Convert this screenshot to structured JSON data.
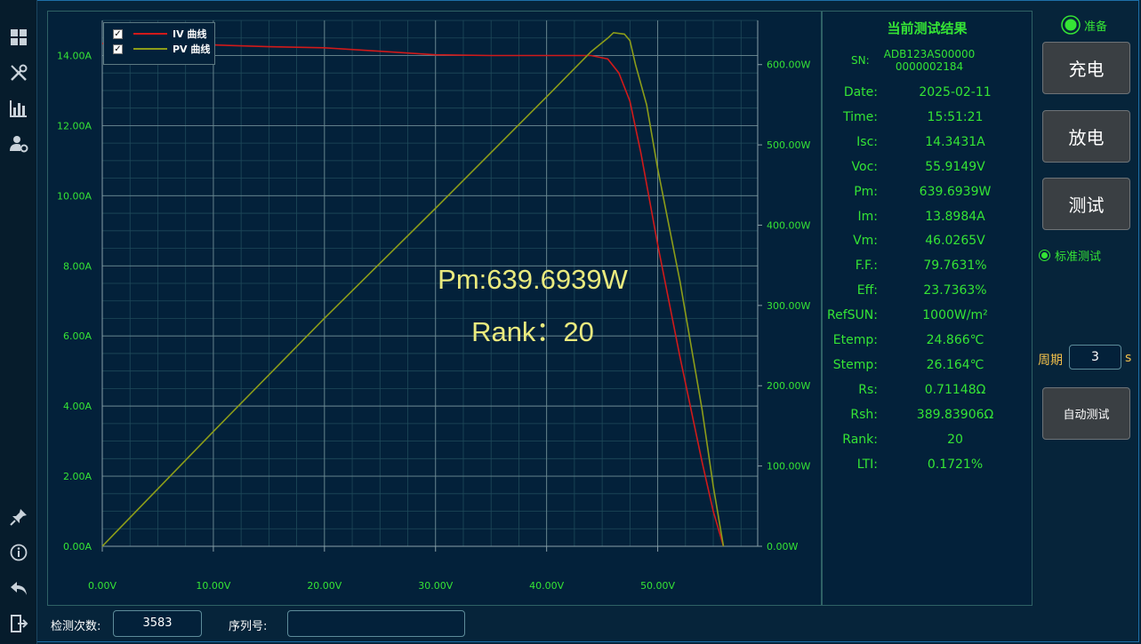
{
  "sidebar": {
    "items": [
      {
        "icon": "dashboard-icon"
      },
      {
        "icon": "tools-icon"
      },
      {
        "icon": "bar-chart-icon"
      },
      {
        "icon": "user-settings-icon"
      },
      {
        "icon": "pin-icon"
      },
      {
        "icon": "info-icon"
      },
      {
        "icon": "back-icon"
      },
      {
        "icon": "exit-icon"
      }
    ]
  },
  "chart": {
    "legend": [
      {
        "label": "IV 曲线",
        "color": "#d11a1a",
        "checked": true
      },
      {
        "label": "PV 曲线",
        "color": "#8c9d19",
        "checked": true
      }
    ],
    "overlay": {
      "pm": "Pm:639.6939W",
      "rank": "Rank：20"
    }
  },
  "chart_data": {
    "type": "line",
    "x_ticks": [
      "0.00V",
      "10.00V",
      "20.00V",
      "30.00V",
      "40.00V",
      "50.00V"
    ],
    "y_left_ticks": [
      "0.00A",
      "2.00A",
      "4.00A",
      "6.00A",
      "8.00A",
      "10.00A",
      "12.00A",
      "14.00A"
    ],
    "y_right_ticks": [
      "0.00W",
      "100.00W",
      "200.00W",
      "300.00W",
      "400.00W",
      "500.00W",
      "600.00W"
    ],
    "xlim": [
      0,
      59
    ],
    "ylim_left": [
      0,
      15
    ],
    "ylim_right": [
      0,
      655
    ],
    "grid": true,
    "legend_position": "top-left",
    "series": [
      {
        "name": "IV 曲线",
        "axis": "left",
        "color": "#d11a1a",
        "x": [
          0,
          5,
          10,
          15,
          20,
          25,
          30,
          35,
          40,
          44,
          45.5,
          46.5,
          47.5,
          48.5,
          50,
          52,
          54,
          55,
          55.9149
        ],
        "y": [
          14.3431,
          14.34,
          14.3,
          14.25,
          14.22,
          14.12,
          14.02,
          14.0,
          14.0,
          14.0,
          13.9,
          13.5,
          12.7,
          11.2,
          8.6,
          5.4,
          2.4,
          1.0,
          0
        ]
      },
      {
        "name": "PV 曲线",
        "axis": "right",
        "color": "#8c9d19",
        "x": [
          0,
          10,
          20,
          30,
          40,
          44,
          45.5,
          46.0265,
          47,
          47.5,
          48,
          49,
          50,
          52,
          54,
          55,
          55.9149
        ],
        "y": [
          0,
          143,
          284,
          421,
          560,
          616,
          633,
          639.6939,
          638,
          630,
          600,
          550,
          470,
          330,
          170,
          75,
          0
        ]
      }
    ]
  },
  "results": {
    "title": "当前测试结果",
    "sn_label": "SN:",
    "sn_line1": "ADB123AS00000",
    "sn_line2": "0000002184",
    "rows": [
      {
        "label": "Date:",
        "value": "2025-02-11"
      },
      {
        "label": "Time:",
        "value": "15:51:21"
      },
      {
        "label": "Isc:",
        "value": "14.3431A"
      },
      {
        "label": "Voc:",
        "value": "55.9149V"
      },
      {
        "label": "Pm:",
        "value": "639.6939W"
      },
      {
        "label": "Im:",
        "value": "13.8984A"
      },
      {
        "label": "Vm:",
        "value": "46.0265V"
      },
      {
        "label": "F.F.:",
        "value": "79.7631%"
      },
      {
        "label": "Eff:",
        "value": "23.7363%"
      },
      {
        "label": "RefSUN:",
        "value": "1000W/m²"
      },
      {
        "label": "Etemp:",
        "value": "24.866℃"
      },
      {
        "label": "Stemp:",
        "value": "26.164℃"
      },
      {
        "label": "Rs:",
        "value": "0.71148Ω"
      },
      {
        "label": "Rsh:",
        "value": "389.83906Ω"
      },
      {
        "label": "Rank:",
        "value": "20"
      },
      {
        "label": "LTI:",
        "value": "0.1721%"
      }
    ]
  },
  "controls": {
    "status": "准备",
    "charge_button": "充电",
    "discharge_button": "放电",
    "test_button": "测试",
    "mode_radio": "标准测试",
    "cycle_label": "周期",
    "cycle_value": "3",
    "cycle_unit": "s",
    "auto_test_button": "自动测试"
  },
  "bottom": {
    "count_label": "检测次数:",
    "count_value": "3583",
    "serial_label": "序列号:",
    "serial_value": ""
  },
  "colors": {
    "accent_green": "#35e435",
    "iv_curve": "#d11a1a",
    "pv_curve": "#8c9d19",
    "overlay_text": "#eaea7e",
    "cycle_text": "#f2c04a"
  }
}
